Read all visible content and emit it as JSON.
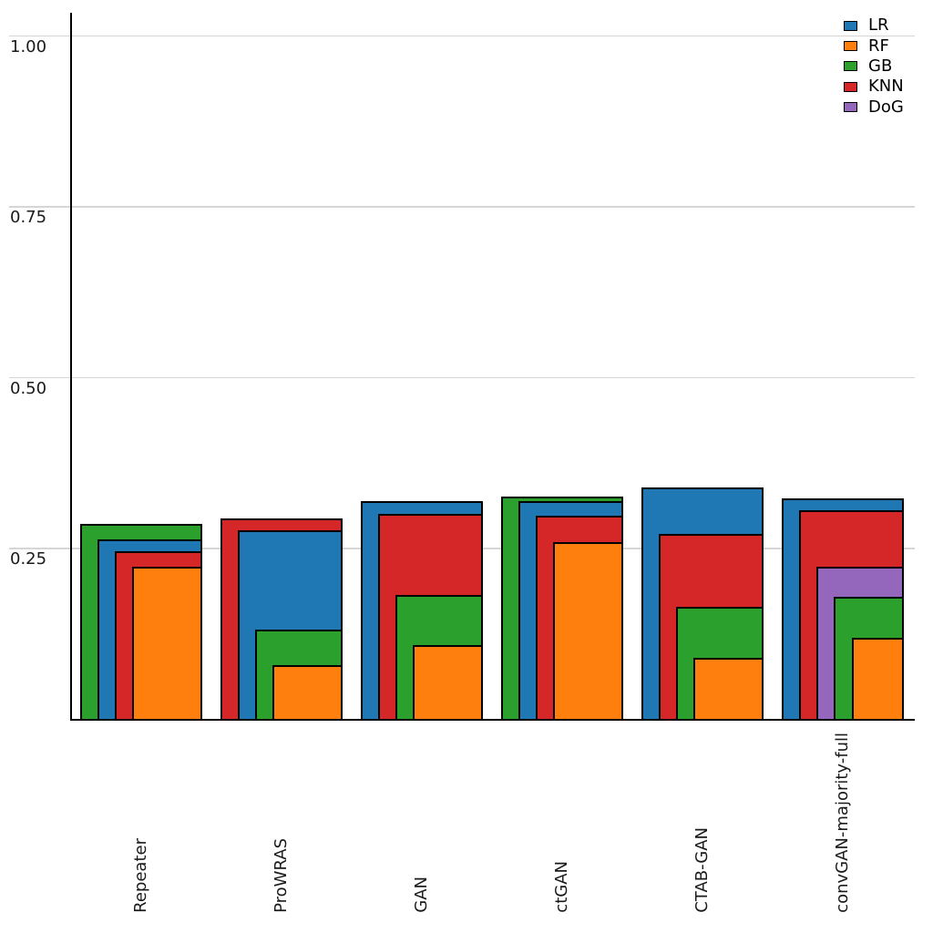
{
  "chart_data": {
    "type": "bar",
    "variant": "overlapping-nested-grouped",
    "title": "",
    "xlabel": "",
    "ylabel": "",
    "background": "#ffffff",
    "grid": "horizontal",
    "grid_color": "#d6d6d6",
    "bar_edge_color": "#000000",
    "ylim": [
      0,
      1.034
    ],
    "yticks": [
      0.25,
      0.5,
      0.75,
      1.0
    ],
    "ytick_labels": [
      "0.25",
      "0.50",
      "0.75",
      "1.00"
    ],
    "categories": [
      "Repeater",
      "ProWRAS",
      "GAN",
      "ctGAN",
      "CTAB-GAN",
      "convGAN-majority-full"
    ],
    "series": [
      {
        "name": "LR",
        "color": "#1f77b4",
        "values": [
          0.263,
          0.277,
          0.32,
          0.319,
          0.34,
          0.323
        ]
      },
      {
        "name": "RF",
        "color": "#ff7f0e",
        "values": [
          0.223,
          0.08,
          0.109,
          0.26,
          0.09,
          0.12
        ]
      },
      {
        "name": "GB",
        "color": "#2ca02c",
        "values": [
          0.286,
          0.132,
          0.182,
          0.326,
          0.165,
          0.18
        ]
      },
      {
        "name": "KNN",
        "color": "#d62728",
        "values": [
          0.246,
          0.294,
          0.301,
          0.298,
          0.271,
          0.306
        ]
      },
      {
        "name": "DoG",
        "color": "#9467bd",
        "values": [
          null,
          null,
          null,
          null,
          null,
          0.223
        ]
      }
    ],
    "legend": {
      "position": "top-right",
      "entries": [
        "LR",
        "RF",
        "GB",
        "KNN",
        "DoG"
      ]
    }
  }
}
